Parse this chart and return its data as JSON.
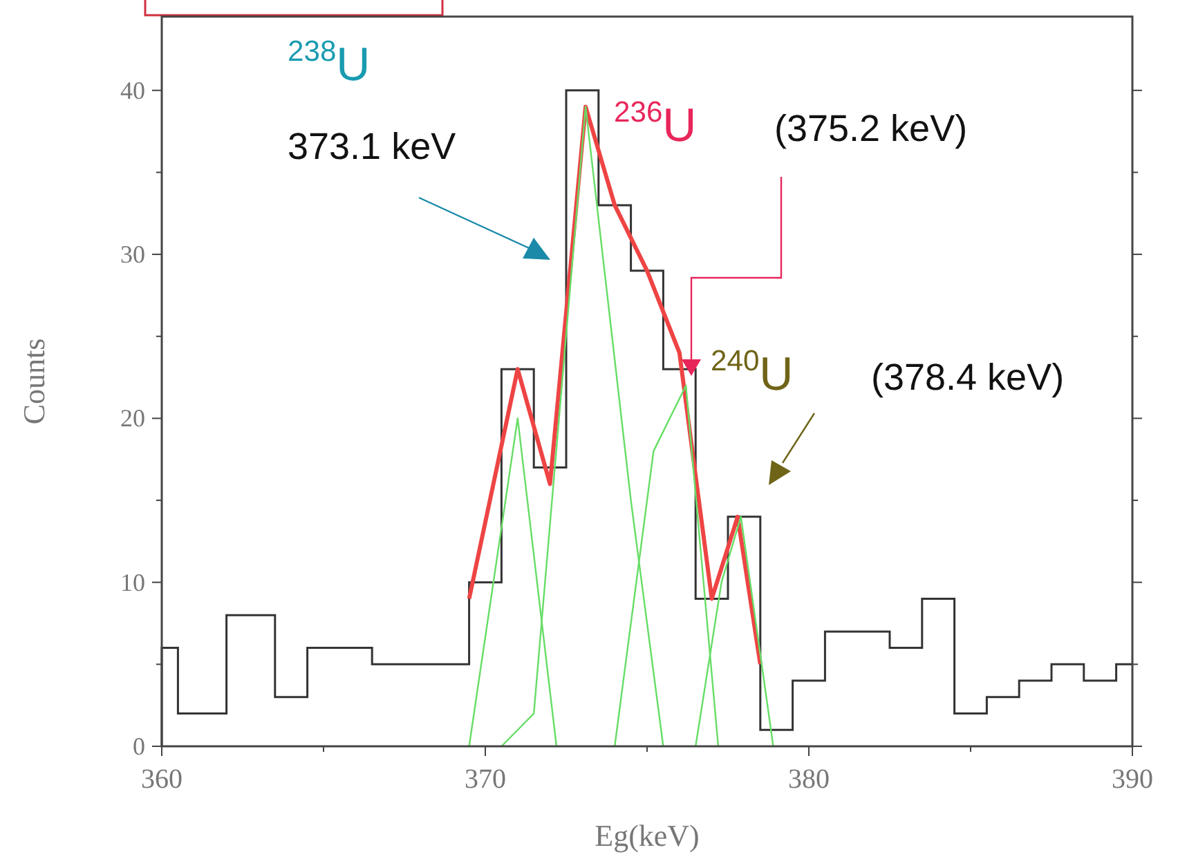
{
  "chart_data": {
    "type": "histogram",
    "xlabel": "Eg(keV)",
    "ylabel": "Counts",
    "bins": [
      360,
      360.5,
      362,
      363.5,
      364.5,
      366.5,
      369.5,
      370.5,
      371.5,
      372.5,
      373.5,
      374.5,
      375.5,
      376.5,
      377.5,
      378.5,
      379.5,
      380.5,
      381.5,
      382.5,
      383.5,
      384.5,
      385.5,
      386.5,
      387.5,
      388.5,
      389.5,
      390
    ],
    "values": [
      6,
      2,
      8,
      3,
      6,
      5,
      10,
      23,
      17,
      40,
      33,
      29,
      23,
      9,
      14,
      1,
      4,
      7,
      7,
      6,
      9,
      2,
      3,
      4,
      5,
      4,
      5
    ],
    "color": "#333333",
    "series": [
      {
        "type": "line",
        "color": "#ee4444",
        "x": [
          369.5,
          371,
          372,
          373.1,
          374,
          375,
          376,
          377,
          377.8,
          378.5
        ],
        "values": [
          9,
          23,
          16,
          39,
          33,
          29,
          24,
          9,
          14,
          5
        ]
      },
      {
        "type": "line",
        "color": "#66dd66",
        "x": [
          369.5,
          371,
          372.2
        ],
        "values": [
          0,
          20,
          0
        ]
      },
      {
        "type": "line",
        "color": "#66dd66",
        "x": [
          370.5,
          371.5,
          373.1,
          374.5,
          375.5
        ],
        "values": [
          0,
          2,
          39,
          15,
          0
        ]
      },
      {
        "type": "line",
        "color": "#66dd66",
        "x": [
          374,
          375.2,
          376.2,
          377.2
        ],
        "values": [
          0,
          18,
          22,
          0
        ]
      },
      {
        "type": "line",
        "color": "#66dd66",
        "x": [
          376.5,
          377.3,
          377.9,
          378.9
        ],
        "values": [
          0,
          10,
          14,
          0
        ]
      }
    ],
    "xlim": [
      360,
      390
    ],
    "ylim": [
      0,
      44.5
    ],
    "xticks": [
      360,
      {
        "value": 365,
        "label": null
      },
      370,
      {
        "value": 375,
        "label": null
      },
      380,
      {
        "value": 385,
        "label": null
      },
      390
    ],
    "yticks": [
      0,
      {
        "value": 5,
        "label": null
      },
      10,
      {
        "value": 15,
        "label": null
      },
      20,
      {
        "value": 25,
        "label": null
      },
      30,
      {
        "value": 35,
        "label": null
      },
      40
    ],
    "grid": false,
    "marker": "none",
    "line_style": "solid",
    "annotations": [
      "$^{238}$U",
      "373.1 keV",
      "$^{236}$U",
      "(375.2 keV)",
      "$^{240}$U",
      "(378.4 keV)"
    ]
  }
}
